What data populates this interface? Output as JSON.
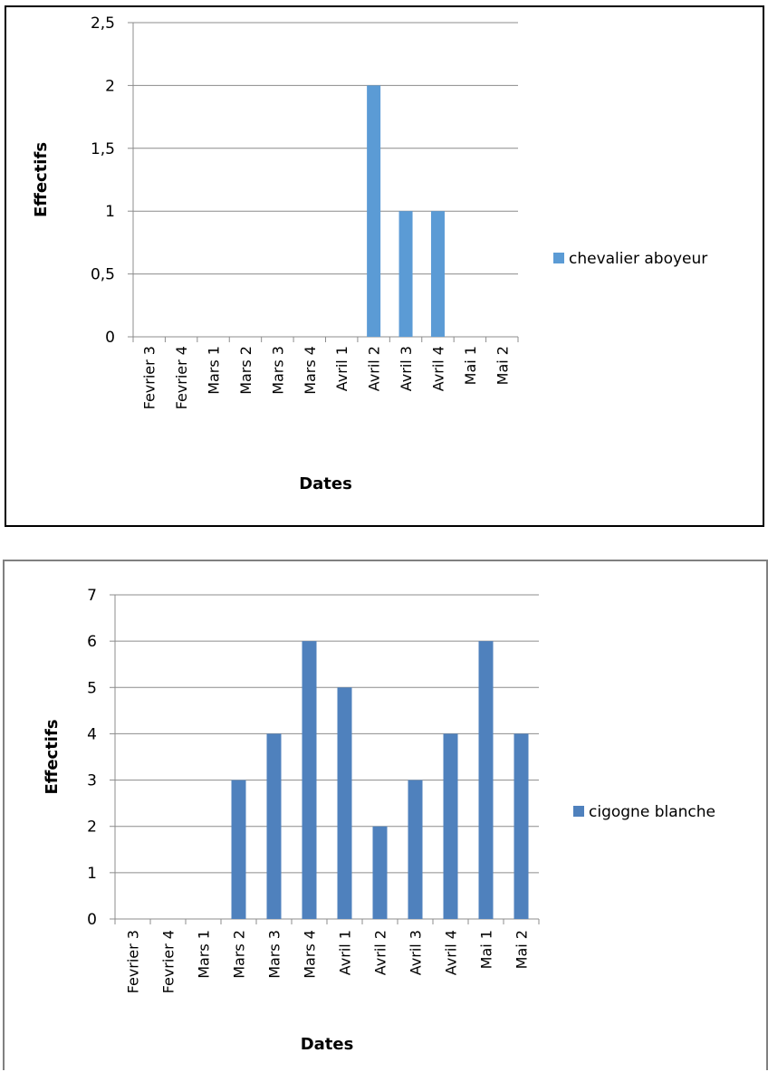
{
  "chart_data": [
    {
      "type": "bar",
      "categories": [
        "Fevrier 3",
        "Fevrier 4",
        "Mars 1",
        "Mars 2",
        "Mars 3",
        "Mars 4",
        "Avril 1",
        "Avril 2",
        "Avril 3",
        "Avril 4",
        "Mai 1",
        "Mai 2"
      ],
      "series": [
        {
          "name": "chevalier aboyeur",
          "values": [
            0,
            0,
            0,
            0,
            0,
            0,
            0,
            2,
            1,
            1,
            0,
            0
          ],
          "color": "#5b9bd5"
        }
      ],
      "xlabel": "Dates",
      "ylabel": "Effectifs",
      "ylim": [
        0,
        2.5
      ],
      "yticks": [
        "0",
        "0,5",
        "1",
        "1,5",
        "2",
        "2,5"
      ],
      "grid": true,
      "legend": "right"
    },
    {
      "type": "bar",
      "categories": [
        "Fevrier 3",
        "Fevrier 4",
        "Mars 1",
        "Mars 2",
        "Mars 3",
        "Mars 4",
        "Avril 1",
        "Avril 2",
        "Avril 3",
        "Avril 4",
        "Mai 1",
        "Mai 2"
      ],
      "series": [
        {
          "name": "cigogne blanche",
          "values": [
            0,
            0,
            0,
            3,
            4,
            6,
            5,
            2,
            3,
            4,
            6,
            4
          ],
          "color": "#4f81bd"
        }
      ],
      "xlabel": "Dates",
      "ylabel": "Effectifs",
      "ylim": [
        0,
        7
      ],
      "yticks": [
        "0",
        "1",
        "2",
        "3",
        "4",
        "5",
        "6",
        "7"
      ],
      "grid": true,
      "legend": "right"
    }
  ]
}
